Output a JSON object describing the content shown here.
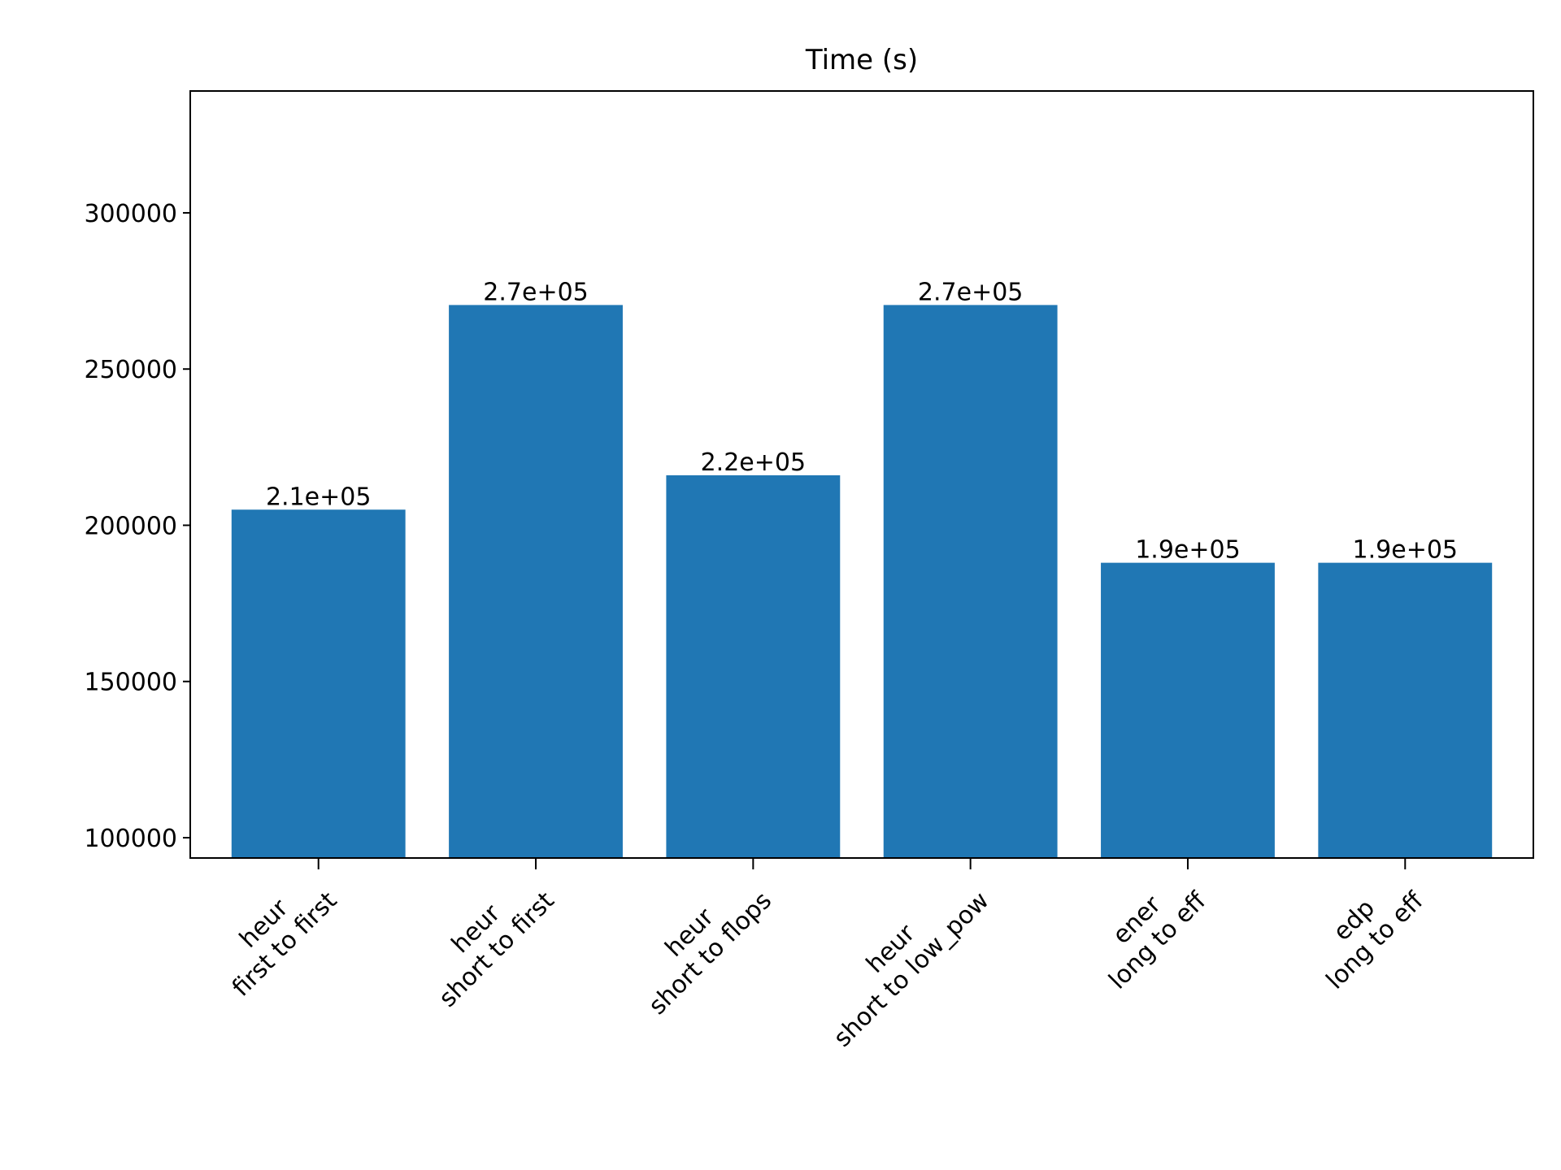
{
  "chart_data": {
    "type": "bar",
    "title": "Time (s)",
    "xlabel": "",
    "ylabel": "",
    "categories": [
      "heur\nfirst to first",
      "heur\nshort to first",
      "heur\nshort to flops",
      "heur\nshort to low_pow",
      "ener\nlong to eff",
      "edp\nlong to eff"
    ],
    "values": [
      205000,
      270500,
      216000,
      270500,
      188000,
      188000
    ],
    "data_labels": [
      "2.1e+05",
      "2.7e+05",
      "2.2e+05",
      "2.7e+05",
      "1.9e+05",
      "1.9e+05"
    ],
    "ylim": [
      93500,
      339000
    ],
    "yticks": [
      100000,
      150000,
      200000,
      250000,
      300000
    ],
    "ytick_labels": [
      "100000",
      "150000",
      "200000",
      "250000",
      "300000"
    ],
    "bar_color": "#2077b4",
    "grid": false,
    "x_tick_rotation_deg": 45
  }
}
